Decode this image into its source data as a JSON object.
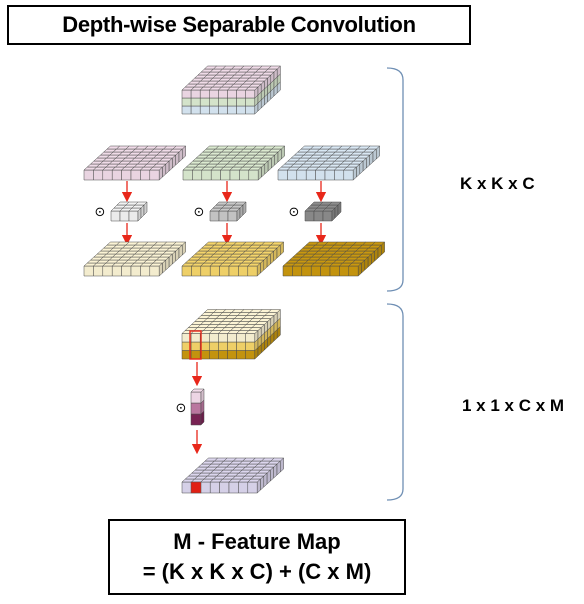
{
  "title": "Depth-wise Separable Convolution",
  "depthwise_cost_label": "K x K x C",
  "pointwise_cost_label": "1 x 1 x C x M",
  "formula": {
    "line1": "M - Feature Map",
    "line2": "= (K x K x C) + (C x M)"
  },
  "operator_symbol": "⊙",
  "colors": {
    "channel_1": "#f0dbe8",
    "channel_2": "#dbead0",
    "channel_3": "#d9e8f4",
    "kernel_1": "#f2f2f2",
    "kernel_2": "#c8c8c8",
    "kernel_3": "#8c8c8c",
    "output_1": "#fbf3d4",
    "output_2": "#f5d56a",
    "output_3": "#c9980e",
    "pointwise_output": "#dcd6ee",
    "pointwise_kernel_top": "#f4dceb",
    "pointwise_kernel_mid": "#c07aa4",
    "pointwise_kernel_bottom": "#7c2356",
    "highlight": "#e8271a",
    "arrow": "#e8271a",
    "bracket": "#6f8fb4"
  }
}
